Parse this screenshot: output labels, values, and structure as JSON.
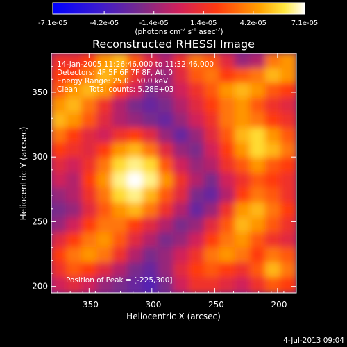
{
  "chart_data": {
    "type": "heatmap",
    "title": "Reconstructed RHESSI Image",
    "xlabel": "Heliocentric X (arcsec)",
    "ylabel": "Heliocentric Y (arcsec)",
    "xlim": [
      -380,
      -185
    ],
    "ylim": [
      195,
      380
    ],
    "xticks": [
      "-350",
      "-300",
      "-250",
      "-200"
    ],
    "xtick_values": [
      -350,
      -300,
      -250,
      -200
    ],
    "yticks": [
      "200",
      "250",
      "300",
      "350"
    ],
    "ytick_values": [
      200,
      250,
      300,
      350
    ],
    "colorbar": {
      "ticks": [
        "-7.1e-05",
        "-4.2e-05",
        "-1.4e-05",
        "1.4e-05",
        "4.2e-05",
        "7.1e-05"
      ],
      "tick_values": [
        -7.1e-05,
        -4.2e-05,
        -1.4e-05,
        1.4e-05,
        4.2e-05,
        7.1e-05
      ],
      "range": [
        -7.1e-05,
        7.1e-05
      ],
      "units": "(photons cm",
      "units_sup1": "-2",
      "units_mid": " s",
      "units_sup2": "-1",
      "units_end": " asec",
      "units_sup3": "-2",
      "units_close": ")"
    },
    "annotations": {
      "time_range": "14-Jan-2005 11:26:46.000 to 11:32:46.000",
      "detectors": "Detectors: 4F 5F 6F 7F 8F, Att 0",
      "energy": "Energy Range: 25.0 - 50.0 keV",
      "clean": "Clean     Total counts: 5.28E+03",
      "peak": "Position of Peak = [-225,300]"
    },
    "grid": false,
    "colors": {
      "low": "#1a1aff",
      "mid": "#5a2a90",
      "high": "#ffffff",
      "hot": "#ff4400"
    },
    "image_values": [
      [
        2,
        2,
        3,
        6,
        7,
        4,
        1,
        -1,
        2,
        5,
        4,
        1,
        -2,
        -1,
        5,
        6
      ],
      [
        3,
        3,
        5,
        7,
        6,
        2,
        -1,
        -2,
        1,
        4,
        5,
        3,
        4,
        5,
        7,
        6
      ],
      [
        4,
        6,
        7,
        6,
        3,
        0,
        -3,
        -2,
        0,
        2,
        4,
        6,
        7,
        6,
        4,
        3
      ],
      [
        6,
        7,
        5,
        2,
        -1,
        -3,
        -4,
        -3,
        -1,
        1,
        3,
        5,
        6,
        4,
        2,
        1
      ],
      [
        7,
        6,
        4,
        1,
        -1,
        -2,
        -3,
        -4,
        -2,
        0,
        2,
        5,
        6,
        5,
        3,
        2
      ],
      [
        5,
        3,
        1,
        0,
        2,
        3,
        1,
        -2,
        -4,
        -2,
        1,
        4,
        7,
        8,
        6,
        4
      ],
      [
        3,
        2,
        1,
        3,
        6,
        7,
        5,
        1,
        -2,
        -3,
        0,
        3,
        6,
        8,
        7,
        5
      ],
      [
        1,
        0,
        2,
        5,
        8,
        9,
        8,
        4,
        0,
        -2,
        -1,
        2,
        4,
        6,
        4,
        3
      ],
      [
        0,
        -1,
        3,
        6,
        9,
        10,
        9,
        6,
        2,
        -1,
        -3,
        0,
        2,
        4,
        3,
        2
      ],
      [
        -2,
        -1,
        2,
        5,
        8,
        9,
        7,
        4,
        1,
        -3,
        -4,
        -1,
        3,
        5,
        4,
        2
      ],
      [
        -3,
        -2,
        1,
        4,
        6,
        7,
        5,
        2,
        -1,
        -4,
        -2,
        2,
        6,
        7,
        5,
        3
      ],
      [
        -2,
        0,
        3,
        5,
        5,
        3,
        1,
        -1,
        -3,
        -2,
        1,
        4,
        7,
        6,
        4,
        2
      ],
      [
        1,
        3,
        5,
        6,
        4,
        1,
        -1,
        -3,
        -2,
        0,
        3,
        5,
        6,
        4,
        2,
        1
      ],
      [
        3,
        5,
        6,
        5,
        2,
        -1,
        -3,
        -2,
        0,
        2,
        5,
        6,
        5,
        3,
        5,
        4
      ],
      [
        2,
        4,
        3,
        1,
        -1,
        -3,
        -4,
        -2,
        1,
        3,
        4,
        3,
        2,
        4,
        7,
        5
      ],
      [
        0,
        1,
        0,
        -2,
        -3,
        -4,
        -5,
        -3,
        0,
        2,
        2,
        1,
        0,
        2,
        4,
        3
      ]
    ]
  },
  "footer": {
    "date": "4-Jul-2013 09:04"
  }
}
